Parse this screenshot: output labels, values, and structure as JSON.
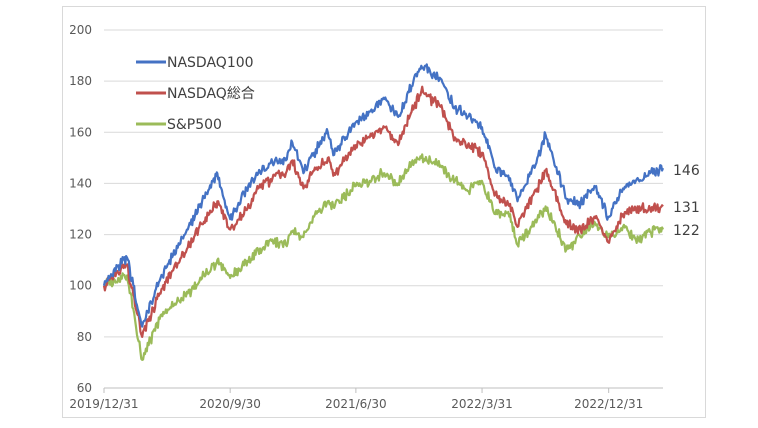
{
  "chart_data": {
    "type": "line",
    "title": "",
    "xlabel": "",
    "ylabel": "",
    "ylim": [
      60,
      200
    ],
    "yticks": [
      60,
      80,
      100,
      120,
      140,
      160,
      180,
      200
    ],
    "xticks": [
      "2019/12/31",
      "2020/9/30",
      "2021/6/30",
      "2022/3/31",
      "2022/12/31"
    ],
    "grid": "horizontal",
    "legend_position": "top-left",
    "x": [
      "2019/12/31",
      "2020/1/31",
      "2020/2/19",
      "2020/3/23",
      "2020/4/30",
      "2020/5/29",
      "2020/6/30",
      "2020/7/31",
      "2020/8/31",
      "2020/9/2",
      "2020/9/30",
      "2020/10/30",
      "2020/11/30",
      "2020/12/31",
      "2021/1/29",
      "2021/2/12",
      "2021/3/8",
      "2021/3/31",
      "2021/4/30",
      "2021/5/12",
      "2021/6/30",
      "2021/7/30",
      "2021/8/31",
      "2021/9/30",
      "2021/10/29",
      "2021/11/19",
      "2021/12/31",
      "2022/1/31",
      "2022/2/28",
      "2022/3/31",
      "2022/4/29",
      "2022/5/31",
      "2022/6/16",
      "2022/7/29",
      "2022/8/16",
      "2022/9/30",
      "2022/10/31",
      "2022/11/30",
      "2022/12/30",
      "2023/1/31",
      "2023/2/28",
      "2023/3/31",
      "2023/4/28"
    ],
    "series": [
      {
        "name": "NASDAQ100",
        "color": "#4472c4",
        "values": [
          100,
          108,
          111,
          84,
          102,
          112,
          122,
          133,
          143,
          144,
          126,
          136,
          144,
          148,
          149,
          156,
          144,
          152,
          160,
          151,
          164,
          168,
          173,
          166,
          178,
          186,
          181,
          170,
          166,
          162,
          146,
          142,
          133,
          150,
          159,
          134,
          132,
          139,
          127,
          138,
          141,
          144,
          146
        ]
      },
      {
        "name": "NASDAQ総合",
        "color": "#c0504d",
        "values": [
          100,
          105,
          108,
          80,
          97,
          106,
          115,
          124,
          132,
          133,
          122,
          128,
          138,
          142,
          144,
          149,
          138,
          145,
          150,
          143,
          155,
          158,
          162,
          155,
          168,
          176,
          170,
          158,
          155,
          152,
          136,
          132,
          123,
          138,
          145,
          124,
          122,
          127,
          117,
          128,
          130,
          130,
          131
        ]
      },
      {
        "name": "S&P500",
        "color": "#9bbb59",
        "values": [
          100,
          103,
          104,
          71,
          87,
          92,
          97,
          103,
          109,
          110,
          103,
          108,
          114,
          118,
          116,
          121,
          119,
          127,
          133,
          131,
          139,
          141,
          144,
          140,
          148,
          150,
          147,
          141,
          137,
          141,
          128,
          128,
          116,
          126,
          131,
          114,
          119,
          125,
          119,
          123,
          118,
          121,
          122
        ]
      }
    ],
    "end_labels": [
      "146",
      "131",
      "122"
    ]
  }
}
